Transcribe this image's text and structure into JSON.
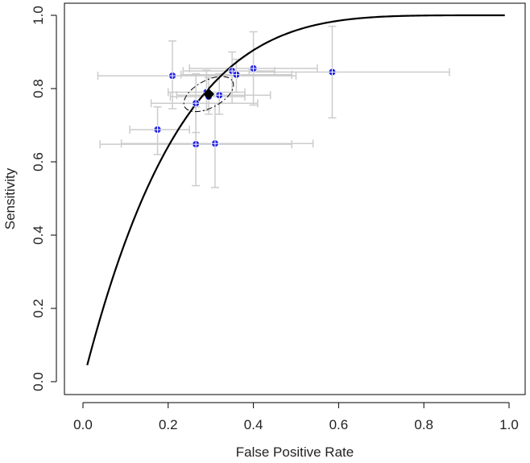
{
  "chart_data": {
    "type": "scatter",
    "xlabel": "False Positive Rate",
    "ylabel": "Sensitivity",
    "xlim": [
      0.0,
      1.0
    ],
    "ylim": [
      0.0,
      1.0
    ],
    "x_ticks": [
      "0.0",
      "0.2",
      "0.4",
      "0.6",
      "0.8",
      "1.0"
    ],
    "y_ticks": [
      "0.0",
      "0.2",
      "0.4",
      "0.6",
      "0.8",
      "1.0"
    ],
    "grid": false,
    "legend": "none",
    "colors": {
      "study_point": "#2222dd",
      "error_bar": "#cccccc",
      "curve": "#000000",
      "summary_point": "#000000"
    },
    "studies": [
      {
        "x": 0.21,
        "y": 0.835,
        "x_err": [
          0.035,
          0.5
        ],
        "y_err": [
          0.745,
          0.93
        ]
      },
      {
        "x": 0.35,
        "y": 0.848,
        "x_err": [
          0.235,
          0.45
        ],
        "y_err": [
          0.76,
          0.9
        ]
      },
      {
        "x": 0.36,
        "y": 0.838,
        "x_err": [
          0.23,
          0.49
        ],
        "y_err": [
          0.79,
          0.88
        ]
      },
      {
        "x": 0.4,
        "y": 0.855,
        "x_err": [
          0.25,
          0.55
        ],
        "y_err": [
          0.755,
          0.955
        ]
      },
      {
        "x": 0.585,
        "y": 0.845,
        "x_err": [
          0.39,
          0.86
        ],
        "y_err": [
          0.72,
          0.97
        ]
      },
      {
        "x": 0.265,
        "y": 0.76,
        "x_err": [
          0.16,
          0.41
        ],
        "y_err": [
          0.68,
          0.84
        ]
      },
      {
        "x": 0.29,
        "y": 0.79,
        "x_err": [
          0.2,
          0.38
        ],
        "y_err": [
          0.74,
          0.85
        ]
      },
      {
        "x": 0.295,
        "y": 0.778,
        "x_err": [
          0.205,
          0.38
        ],
        "y_err": [
          0.73,
          0.83
        ]
      },
      {
        "x": 0.32,
        "y": 0.782,
        "x_err": [
          0.22,
          0.44
        ],
        "y_err": [
          0.73,
          0.84
        ]
      },
      {
        "x": 0.175,
        "y": 0.688,
        "x_err": [
          0.11,
          0.25
        ],
        "y_err": [
          0.62,
          0.75
        ]
      },
      {
        "x": 0.265,
        "y": 0.648,
        "x_err": [
          0.04,
          0.49
        ],
        "y_err": [
          0.535,
          0.75
        ]
      },
      {
        "x": 0.31,
        "y": 0.65,
        "x_err": [
          0.09,
          0.54
        ],
        "y_err": [
          0.53,
          0.76
        ]
      }
    ],
    "summary_point": {
      "x": 0.295,
      "y": 0.785
    },
    "confidence_region": {
      "center": [
        0.295,
        0.785
      ],
      "x_range": [
        0.235,
        0.36
      ],
      "y_range": [
        0.72,
        0.84
      ],
      "rotation_deg": -28
    },
    "sroc_curve": {
      "x_start": 0.01,
      "x_end": 0.99,
      "y_at_x_start": 0.045,
      "y_at_x_end": 1.0
    }
  }
}
